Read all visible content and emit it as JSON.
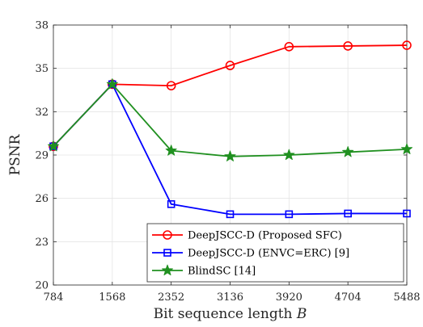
{
  "chart_data": {
    "type": "line",
    "xlabel": "Bit sequence length",
    "xlabel_var": "B",
    "ylabel": "PSNR",
    "x": [
      784,
      1568,
      2352,
      3136,
      3920,
      4704,
      5488
    ],
    "xticks": [
      "784",
      "1568",
      "2352",
      "3136",
      "3920",
      "4704",
      "5488"
    ],
    "xlim": [
      784,
      5488
    ],
    "ylim": [
      20,
      38
    ],
    "yticks": [
      "20",
      "23",
      "26",
      "29",
      "32",
      "35",
      "38"
    ],
    "ytick_values": [
      20,
      23,
      26,
      29,
      32,
      35,
      38
    ],
    "grid": true,
    "legend_position": "bottom-right",
    "series": [
      {
        "name": "DeepJSCC-D (Proposed SFC)",
        "color": "#ff0000",
        "marker": "circle",
        "values": [
          29.6,
          33.9,
          33.8,
          35.2,
          36.5,
          36.55,
          36.6
        ]
      },
      {
        "name": "DeepJSCC-D (ENVC=ERC) [9]",
        "color": "#0000ff",
        "marker": "square",
        "values": [
          29.6,
          33.9,
          25.6,
          24.9,
          24.9,
          24.95,
          24.95
        ]
      },
      {
        "name": "BlindSC [14]",
        "color": "#209020",
        "marker": "star",
        "values": [
          29.6,
          33.9,
          29.3,
          28.9,
          29.0,
          29.2,
          29.4
        ]
      }
    ]
  }
}
